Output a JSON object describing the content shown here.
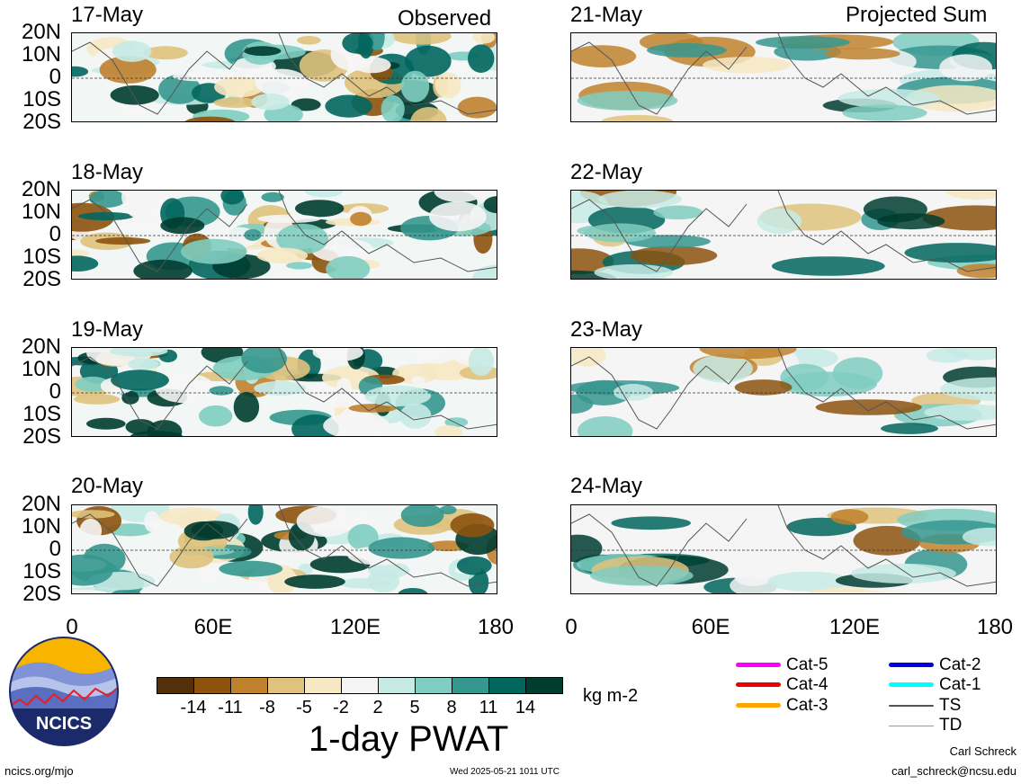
{
  "headers": {
    "observed": "Observed",
    "projected": "Projected Sum"
  },
  "panels": [
    {
      "date": "17-May",
      "column": "observed"
    },
    {
      "date": "18-May",
      "column": "observed"
    },
    {
      "date": "19-May",
      "column": "observed"
    },
    {
      "date": "20-May",
      "column": "observed"
    },
    {
      "date": "21-May",
      "column": "projected"
    },
    {
      "date": "22-May",
      "column": "projected"
    },
    {
      "date": "23-May",
      "column": "projected"
    },
    {
      "date": "24-May",
      "column": "projected"
    }
  ],
  "lat_labels": [
    "20N",
    "10N",
    "0",
    "10S",
    "20S"
  ],
  "lon_labels": [
    "0",
    "60E",
    "120E",
    "180"
  ],
  "colorbar": {
    "title": "1-day PWAT",
    "units": "kg m-2",
    "tick_labels": [
      "-14",
      "-11",
      "-8",
      "-5",
      "-2",
      "2",
      "5",
      "8",
      "11",
      "14"
    ],
    "colors": [
      "#54300a",
      "#8c520e",
      "#bf812d",
      "#dfc27d",
      "#f6e8c3",
      "#f5f5f5",
      "#c7eae5",
      "#80cdc1",
      "#35978f",
      "#01665e",
      "#003c30"
    ]
  },
  "storm_legend": [
    {
      "label": "Cat-5",
      "color": "#ff00ff"
    },
    {
      "label": "Cat-4",
      "color": "#ee0000"
    },
    {
      "label": "Cat-3",
      "color": "#ffa500"
    },
    {
      "label": "Cat-2",
      "color": "#0000dd"
    },
    {
      "label": "Cat-1",
      "color": "#00ffff"
    },
    {
      "label": "TS",
      "color": "#555555"
    },
    {
      "label": "TD",
      "color": "#999999"
    }
  ],
  "logo": {
    "text": "NCICS"
  },
  "footer": {
    "url": "ncics.org/mjo",
    "timestamp": "Wed 2025-05-21 1011 UTC",
    "author": "Carl Schreck",
    "email": "carl_schreck@ncsu.edu"
  }
}
